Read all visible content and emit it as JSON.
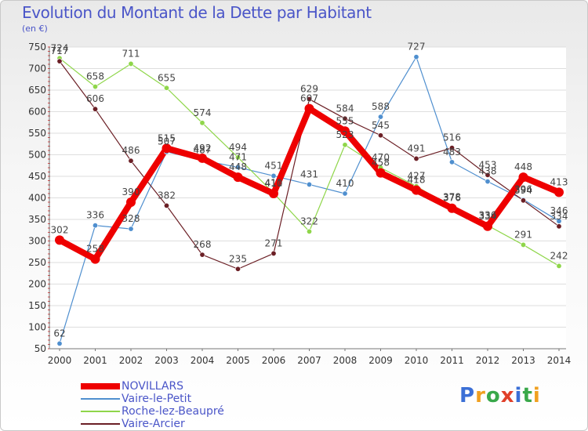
{
  "header": {
    "title": "Evolution du Montant de la Dette par Habitant",
    "unit": "(en €)"
  },
  "brand": {
    "text": "Proxiti",
    "colors": [
      "#3b6fd6",
      "#f0a020",
      "#39a84a",
      "#e0402a",
      "#3b6fd6",
      "#39a84a",
      "#f0a020"
    ]
  },
  "chart_data": {
    "type": "line",
    "title": "Evolution du Montant de la Dette par Habitant",
    "ylabel": "(en €)",
    "xlabel": "",
    "ylim": [
      50,
      750
    ],
    "yticks": [
      50,
      100,
      150,
      200,
      250,
      300,
      350,
      400,
      450,
      500,
      550,
      600,
      650,
      700,
      750
    ],
    "categories": [
      "2000",
      "2001",
      "2002",
      "2003",
      "2004",
      "2005",
      "2006",
      "2007",
      "2008",
      "2009",
      "2010",
      "2011",
      "2012",
      "2013",
      "2014"
    ],
    "grid": "horizontal",
    "legend_position": "bottom-left",
    "series": [
      {
        "name": "Vaire-le-Petit",
        "color": "#4f8fcf",
        "width": 1.2,
        "values": [
          62,
          336,
          328,
          507,
          487,
          471,
          451,
          431,
          410,
          588,
          727,
          483,
          438,
          396,
          346
        ]
      },
      {
        "name": "Roche-lez-Beaupré",
        "color": "#8fd64a",
        "width": 1.2,
        "values": [
          724,
          658,
          711,
          655,
          574,
          494,
          411,
          322,
          523,
          470,
          427,
          378,
          336,
          291,
          242
        ]
      },
      {
        "name": "Vaire-Arcier",
        "color": "#6b1f25",
        "width": 1.2,
        "values": [
          717,
          606,
          486,
          382,
          268,
          235,
          271,
          629,
          584,
          545,
          491,
          516,
          453,
          394,
          334
        ]
      },
      {
        "name": "NOVILLARS",
        "color": "#ee0000",
        "width": 8,
        "values": [
          302,
          258,
          390,
          515,
          492,
          448,
          410,
          607,
          555,
          458,
          418,
          376,
          334,
          448,
          413
        ]
      }
    ]
  }
}
